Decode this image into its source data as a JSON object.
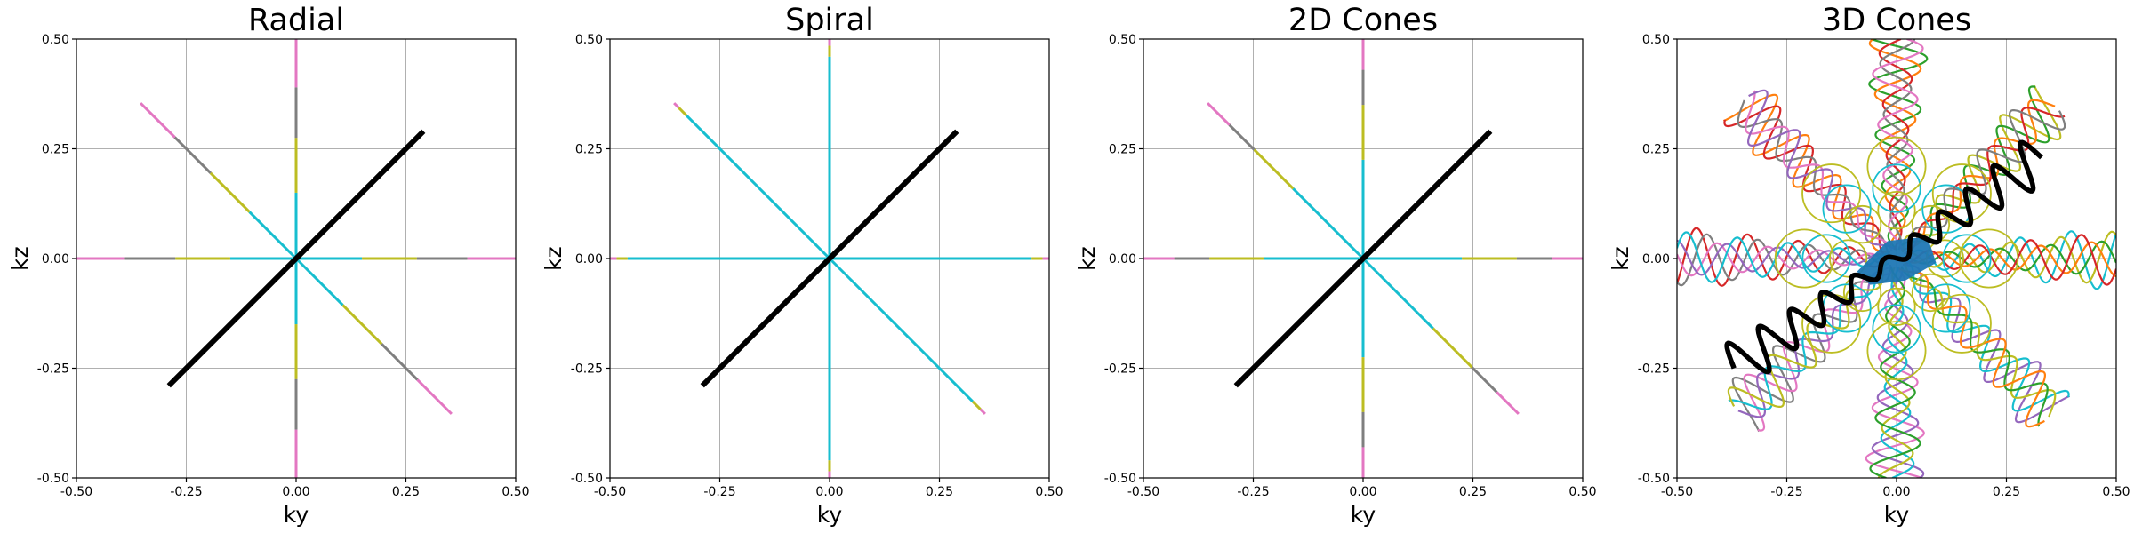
{
  "chart_data": [
    {
      "type": "line",
      "title": "Radial",
      "xlabel": "ky",
      "ylabel": "kz",
      "xlim": [
        -0.5,
        0.5
      ],
      "ylim": [
        -0.5,
        0.5
      ],
      "xticks": [
        "-0.50",
        "-0.25",
        "0.00",
        "0.25",
        "0.50"
      ],
      "yticks": [
        "-0.50",
        "-0.25",
        "0.00",
        "0.25",
        "0.50"
      ],
      "grid": true,
      "pattern": "radial",
      "spokes": [
        {
          "x": [
            -0.5,
            0.5
          ],
          "y": [
            0,
            0
          ]
        },
        {
          "x": [
            0,
            0
          ],
          "y": [
            -0.5,
            0.5
          ]
        },
        {
          "x": [
            -0.354,
            0.354
          ],
          "y": [
            0.354,
            -0.354
          ]
        }
      ],
      "highlight": {
        "x": [
          -0.29,
          0.29
        ],
        "y": [
          -0.29,
          0.29
        ]
      },
      "palette": [
        "#e377c2",
        "#7f7f7f",
        "#bcbd22",
        "#17becf"
      ],
      "highlight_color": "#000000"
    },
    {
      "type": "line",
      "title": "Spiral",
      "xlabel": "ky",
      "ylabel": "kz",
      "xlim": [
        -0.5,
        0.5
      ],
      "ylim": [
        -0.5,
        0.5
      ],
      "xticks": [
        "-0.50",
        "-0.25",
        "0.00",
        "0.25",
        "0.50"
      ],
      "yticks": [
        "-0.50",
        "-0.25",
        "0.00",
        "0.25",
        "0.50"
      ],
      "grid": true,
      "pattern": "spiral",
      "spokes": [
        {
          "x": [
            -0.5,
            0.5
          ],
          "y": [
            0,
            0
          ]
        },
        {
          "x": [
            0,
            0
          ],
          "y": [
            -0.5,
            0.5
          ]
        },
        {
          "x": [
            -0.354,
            0.354
          ],
          "y": [
            0.354,
            -0.354
          ]
        }
      ],
      "highlight": {
        "x": [
          -0.29,
          0.29
        ],
        "y": [
          -0.29,
          0.29
        ]
      },
      "palette": [
        "#17becf",
        "#bcbd22",
        "#e377c2",
        "#7f7f7f"
      ],
      "highlight_color": "#000000"
    },
    {
      "type": "line",
      "title": "2D Cones",
      "xlabel": "ky",
      "ylabel": "kz",
      "xlim": [
        -0.5,
        0.5
      ],
      "ylim": [
        -0.5,
        0.5
      ],
      "xticks": [
        "-0.50",
        "-0.25",
        "0.00",
        "0.25",
        "0.50"
      ],
      "yticks": [
        "-0.50",
        "-0.25",
        "0.00",
        "0.25",
        "0.50"
      ],
      "grid": true,
      "pattern": "cones2d",
      "spokes": [
        {
          "x": [
            -0.5,
            0.5
          ],
          "y": [
            0,
            0
          ]
        },
        {
          "x": [
            0,
            0
          ],
          "y": [
            -0.5,
            0.5
          ]
        },
        {
          "x": [
            -0.354,
            0.354
          ],
          "y": [
            0.354,
            -0.354
          ]
        }
      ],
      "highlight": {
        "x": [
          -0.29,
          0.29
        ],
        "y": [
          -0.29,
          0.29
        ]
      },
      "palette": [
        "#e377c2",
        "#7f7f7f",
        "#bcbd22",
        "#17becf"
      ],
      "highlight_color": "#000000"
    },
    {
      "type": "line",
      "title": "3D Cones",
      "xlabel": "ky",
      "ylabel": "kz",
      "xlim": [
        -0.5,
        0.5
      ],
      "ylim": [
        -0.5,
        0.5
      ],
      "xticks": [
        "-0.50",
        "-0.25",
        "0.00",
        "0.25",
        "0.50"
      ],
      "yticks": [
        "-0.50",
        "-0.25",
        "0.00",
        "0.25",
        "0.50"
      ],
      "grid": true,
      "pattern": "cones3d",
      "arm_directions_deg": [
        0,
        45,
        90,
        135,
        180,
        225,
        270,
        315
      ],
      "arm_radius": [
        0.02,
        0.5
      ],
      "center_fill_color": "#1f77b4",
      "palette": [
        "#17becf",
        "#bcbd22",
        "#2ca02c",
        "#ff7f0e",
        "#d62728",
        "#7f7f7f",
        "#e377c2",
        "#9467bd"
      ],
      "highlight": {
        "x": [
          -0.37,
          0.33
        ],
        "y": [
          -0.25,
          0.23
        ]
      },
      "highlight_color": "#000000"
    }
  ]
}
